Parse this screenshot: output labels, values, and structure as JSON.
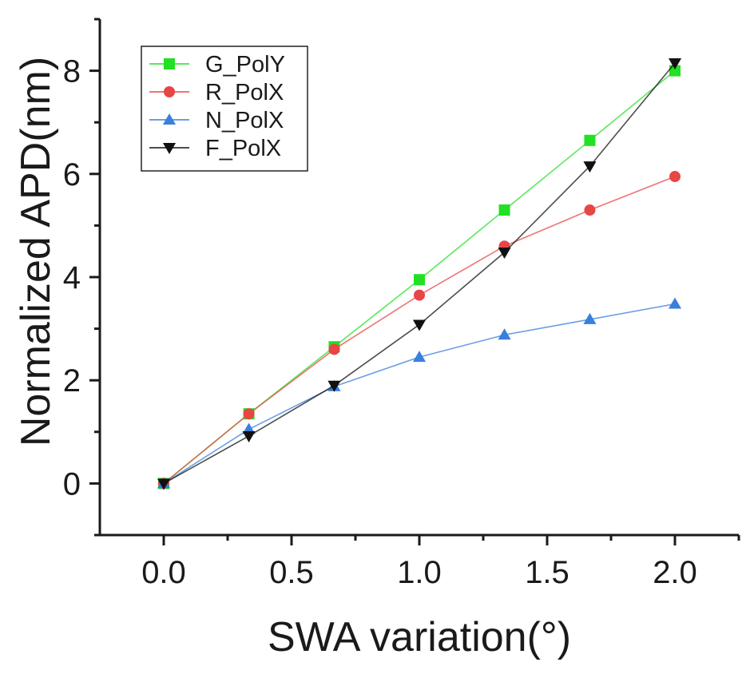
{
  "chart_data": {
    "type": "line",
    "title": "",
    "xlabel": "SWA variation(°)",
    "ylabel": "Normalized APD(nm)",
    "xlim": [
      -0.25,
      2.25
    ],
    "ylim": [
      -1,
      9
    ],
    "x_ticks": [
      0.0,
      0.5,
      1.0,
      1.5,
      2.0
    ],
    "x_tick_labels": [
      "0.0",
      "0.5",
      "1.0",
      "1.5",
      "2.0"
    ],
    "y_ticks": [
      0,
      2,
      4,
      6,
      8
    ],
    "y_tick_labels": [
      "0",
      "2",
      "4",
      "6",
      "8"
    ],
    "grid": false,
    "legend_position": "top-left",
    "x": [
      0.0,
      0.333,
      0.667,
      1.0,
      1.333,
      1.667,
      2.0
    ],
    "series": [
      {
        "name": "G_PolY",
        "color": "#22e022",
        "marker": "square",
        "values": [
          0.0,
          1.35,
          2.65,
          3.95,
          5.3,
          6.65,
          8.0
        ]
      },
      {
        "name": "R_PolX",
        "color": "#e84545",
        "marker": "circle",
        "values": [
          0.0,
          1.35,
          2.6,
          3.65,
          4.6,
          5.3,
          5.95
        ]
      },
      {
        "name": "N_PolX",
        "color": "#3a7fdc",
        "marker": "triangle-up",
        "values": [
          0.0,
          1.05,
          1.88,
          2.45,
          2.88,
          3.18,
          3.48
        ]
      },
      {
        "name": "F_PolX",
        "color": "#111111",
        "marker": "triangle-down",
        "values": [
          0.0,
          0.92,
          1.9,
          3.08,
          4.48,
          6.15,
          8.15
        ]
      }
    ]
  }
}
